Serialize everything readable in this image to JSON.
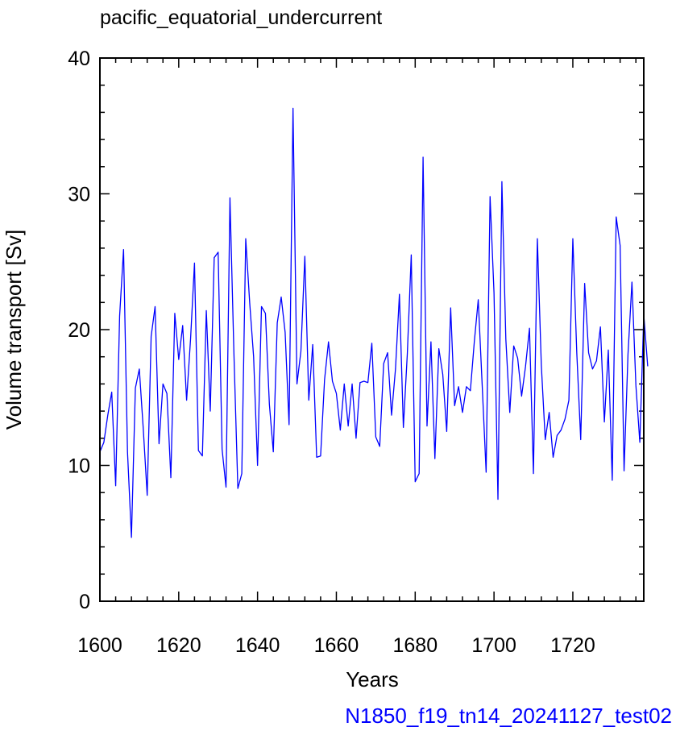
{
  "chart_data": {
    "type": "line",
    "title": "pacific_equatorial_undercurrent",
    "xlabel": "Years",
    "ylabel": "Volume transport [Sv]",
    "footer": "N1850_f19_tn14_20241127_test02",
    "xlim": [
      1600,
      1738
    ],
    "ylim": [
      0,
      40
    ],
    "x_ticks": [
      "1600",
      "1620",
      "1640",
      "1660",
      "1680",
      "1700",
      "1720"
    ],
    "y_ticks": [
      "0",
      "10",
      "20",
      "30",
      "40"
    ],
    "line_color": "#0000ff",
    "footer_color": "#0000ff",
    "grid": false,
    "series": [
      {
        "x_start": 1600,
        "x_step": 1,
        "values": [
          11.0,
          11.7,
          13.7,
          15.4,
          8.5,
          21.0,
          25.9,
          11.0,
          4.7,
          15.7,
          17.1,
          12.7,
          7.8,
          19.5,
          21.7,
          11.6,
          16.0,
          15.3,
          9.1,
          21.2,
          17.8,
          20.3,
          14.8,
          19.3,
          24.9,
          11.1,
          10.7,
          21.4,
          14.0,
          25.3,
          25.7,
          11.2,
          8.4,
          29.7,
          18.3,
          8.3,
          9.4,
          26.7,
          22.0,
          18.0,
          10.0,
          21.7,
          21.2,
          14.5,
          11.0,
          20.5,
          22.4,
          19.8,
          13.0,
          36.3,
          16.0,
          18.4,
          25.4,
          14.8,
          18.9,
          10.6,
          10.7,
          16.3,
          19.1,
          16.2,
          15.3,
          12.6,
          16.0,
          12.9,
          16.0,
          12.0,
          16.1,
          16.2,
          16.1,
          19.0,
          12.1,
          11.4,
          17.5,
          18.3,
          13.7,
          17.1,
          22.6,
          12.8,
          18.2,
          25.5,
          8.8,
          9.4,
          32.7,
          12.9,
          19.1,
          10.5,
          18.6,
          16.7,
          12.5,
          21.6,
          14.4,
          15.8,
          13.9,
          15.8,
          15.5,
          19.1,
          22.2,
          15.9,
          9.5,
          29.8,
          22.7,
          7.5,
          30.9,
          19.3,
          13.9,
          18.8,
          17.9,
          15.1,
          17.3,
          20.1,
          9.4,
          26.7,
          17.4,
          11.9,
          13.9,
          10.6,
          12.2,
          12.6,
          13.4,
          14.8,
          26.7,
          18.3,
          11.9,
          23.4,
          18.3,
          17.1,
          17.7,
          20.2,
          13.2,
          18.5,
          8.9,
          28.3,
          26.2,
          9.6,
          18.2,
          23.5,
          15.9,
          11.7,
          21.1,
          17.3
        ]
      }
    ]
  }
}
